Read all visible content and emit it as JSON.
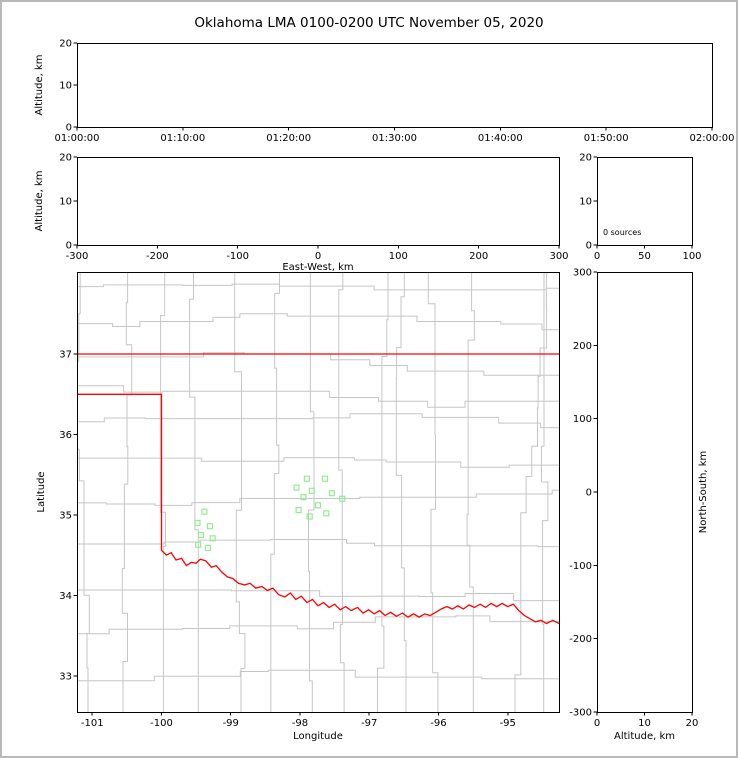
{
  "title": "Oklahoma LMA 0100-0200 UTC November 05, 2020",
  "colors": {
    "axis": "#000000",
    "tick_text": "#000000",
    "state_border": "#ff0000",
    "county_lines": "#c6c6c6",
    "station": "#90ee90",
    "background": "#ffffff",
    "frame": "#b9b9b9"
  },
  "chart_data": [
    {
      "id": "time-height",
      "type": "scatter",
      "title": "",
      "xlabel": "",
      "ylabel": "Altitude, km",
      "xticks": [
        "01:00:00",
        "01:10:00",
        "01:20:00",
        "01:30:00",
        "01:40:00",
        "01:50:00",
        "02:00:00"
      ],
      "yticks_top_to_bottom": [
        "20",
        "10",
        "0"
      ],
      "xlim": [
        "01:00:00",
        "02:00:00"
      ],
      "ylim": [
        0,
        20
      ],
      "grid": false,
      "points": []
    },
    {
      "id": "ew-height",
      "type": "scatter",
      "title": "",
      "xlabel": "East-West, km",
      "ylabel": "Altitude, km",
      "xticks": [
        "-300",
        "-200",
        "-100",
        "0",
        "100",
        "200",
        "300"
      ],
      "yticks_top_to_bottom": [
        "20",
        "10",
        "0"
      ],
      "xlim": [
        -300,
        300
      ],
      "ylim": [
        0,
        20
      ],
      "grid": false,
      "points": []
    },
    {
      "id": "altitude-source-histogram",
      "type": "bar",
      "title": "",
      "xlabel": "",
      "ylabel": "",
      "xticks": [
        "0",
        "50",
        "100"
      ],
      "yticks_top_to_bottom": [
        "20",
        "10",
        "0"
      ],
      "xlim": [
        0,
        100
      ],
      "ylim": [
        0,
        20
      ],
      "annotation": "0 sources",
      "values": []
    },
    {
      "id": "plan-view-map",
      "type": "scatter",
      "title": "",
      "xlabel": "Longitude",
      "ylabel": "Latitude",
      "xticks": [
        -101,
        -100,
        -99,
        -98,
        -97,
        -96,
        -95
      ],
      "yticks": [
        37,
        36,
        35,
        34,
        33
      ],
      "xlim": [
        -101.22,
        -94.26
      ],
      "ylim": [
        32.55,
        38.02
      ],
      "grid": false,
      "stations": [
        [
          -97.9,
          35.45
        ],
        [
          -97.64,
          35.45
        ],
        [
          -98.05,
          35.34
        ],
        [
          -97.83,
          35.3
        ],
        [
          -97.54,
          35.27
        ],
        [
          -97.95,
          35.22
        ],
        [
          -97.39,
          35.2
        ],
        [
          -97.74,
          35.12
        ],
        [
          -98.02,
          35.06
        ],
        [
          -97.62,
          35.02
        ],
        [
          -97.86,
          34.98
        ],
        [
          -99.38,
          35.04
        ],
        [
          -99.48,
          34.9
        ],
        [
          -99.3,
          34.86
        ],
        [
          -99.43,
          34.75
        ],
        [
          -99.26,
          34.71
        ],
        [
          -99.47,
          34.63
        ],
        [
          -99.33,
          34.59
        ]
      ],
      "borders": {
        "north": [
          [
            -101.22,
            37.0
          ],
          [
            -94.26,
            37.0
          ]
        ],
        "west_and_south": [
          [
            -101.22,
            36.5
          ],
          [
            -100.0,
            36.5
          ],
          [
            -100.0,
            34.56
          ],
          [
            -99.93,
            34.5
          ],
          [
            -99.86,
            34.53
          ],
          [
            -99.79,
            34.44
          ],
          [
            -99.71,
            34.46
          ],
          [
            -99.64,
            34.37
          ],
          [
            -99.57,
            34.41
          ],
          [
            -99.5,
            34.4
          ],
          [
            -99.44,
            34.45
          ],
          [
            -99.36,
            34.43
          ],
          [
            -99.28,
            34.35
          ],
          [
            -99.21,
            34.37
          ],
          [
            -99.13,
            34.29
          ],
          [
            -99.05,
            34.23
          ],
          [
            -98.97,
            34.21
          ],
          [
            -98.89,
            34.15
          ],
          [
            -98.8,
            34.13
          ],
          [
            -98.72,
            34.15
          ],
          [
            -98.64,
            34.09
          ],
          [
            -98.55,
            34.11
          ],
          [
            -98.47,
            34.06
          ],
          [
            -98.39,
            34.09
          ],
          [
            -98.31,
            34.01
          ],
          [
            -98.22,
            33.98
          ],
          [
            -98.14,
            34.03
          ],
          [
            -98.06,
            33.95
          ],
          [
            -97.98,
            33.99
          ],
          [
            -97.9,
            33.91
          ],
          [
            -97.82,
            33.95
          ],
          [
            -97.74,
            33.87
          ],
          [
            -97.66,
            33.91
          ],
          [
            -97.58,
            33.85
          ],
          [
            -97.5,
            33.89
          ],
          [
            -97.42,
            33.82
          ],
          [
            -97.34,
            33.86
          ],
          [
            -97.26,
            33.81
          ],
          [
            -97.17,
            33.85
          ],
          [
            -97.09,
            33.78
          ],
          [
            -97.01,
            33.82
          ],
          [
            -96.93,
            33.77
          ],
          [
            -96.85,
            33.81
          ],
          [
            -96.77,
            33.75
          ],
          [
            -96.69,
            33.79
          ],
          [
            -96.61,
            33.74
          ],
          [
            -96.52,
            33.78
          ],
          [
            -96.44,
            33.73
          ],
          [
            -96.36,
            33.77
          ],
          [
            -96.28,
            33.73
          ],
          [
            -96.2,
            33.77
          ],
          [
            -96.12,
            33.75
          ],
          [
            -96.04,
            33.79
          ],
          [
            -95.96,
            33.83
          ],
          [
            -95.88,
            33.86
          ],
          [
            -95.8,
            33.83
          ],
          [
            -95.72,
            33.87
          ],
          [
            -95.64,
            33.83
          ],
          [
            -95.56,
            33.88
          ],
          [
            -95.48,
            33.85
          ],
          [
            -95.4,
            33.89
          ],
          [
            -95.32,
            33.85
          ],
          [
            -95.24,
            33.9
          ],
          [
            -95.16,
            33.86
          ],
          [
            -95.08,
            33.9
          ],
          [
            -95.0,
            33.86
          ],
          [
            -94.92,
            33.89
          ],
          [
            -94.84,
            33.81
          ],
          [
            -94.76,
            33.75
          ],
          [
            -94.68,
            33.71
          ],
          [
            -94.6,
            33.67
          ],
          [
            -94.52,
            33.69
          ],
          [
            -94.44,
            33.65
          ],
          [
            -94.35,
            33.69
          ],
          [
            -94.26,
            33.65
          ]
        ]
      }
    },
    {
      "id": "ns-height",
      "type": "scatter",
      "title": "",
      "xlabel": "Altitude, km",
      "ylabel": "North-South, km",
      "xticks": [
        "0",
        "10",
        "20"
      ],
      "yticks_top_to_bottom": [
        "300",
        "200",
        "100",
        "0",
        "-100",
        "-200",
        "-300"
      ],
      "xlim": [
        0,
        20
      ],
      "ylim": [
        -300,
        300
      ],
      "grid": false,
      "points": []
    }
  ]
}
